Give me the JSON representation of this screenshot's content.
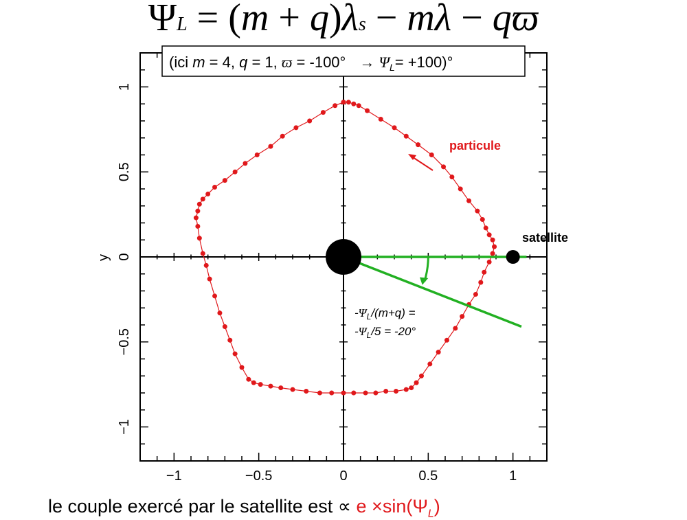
{
  "equation": {
    "lhs_symbol": "Ψ",
    "lhs_sub": "L",
    "eq_prefix": " = (",
    "m1": "m",
    "plus": " + ",
    "q1": "q",
    "close_paren": ")",
    "lambda1": "λ",
    "lambda1_sub": "s",
    "minus1": " − ",
    "m2": "m",
    "lambda2": "λ",
    "minus2": " − ",
    "q2": "q",
    "varpi": "ϖ"
  },
  "note_box": {
    "text_pre": "(ici ",
    "m": "m",
    "m_val": " = 4, ",
    "q": "q",
    "q_val": " = 1, ",
    "varpi": "ϖ",
    "varpi_val": " = -100°",
    "arrow": "→ ",
    "psi": "Ψ",
    "psi_sub": "L",
    "psi_val": "= +100)°"
  },
  "labels": {
    "particle": "particule",
    "satellite": "satellite",
    "angle_line1_pre": "-",
    "angle_line1_psi": "Ψ",
    "angle_line1_sub": "L",
    "angle_line1_post": "/(m+q) =",
    "angle_line2_pre": "-",
    "angle_line2_psi": "Ψ",
    "angle_line2_sub": "L",
    "angle_line2_post": "/5 = -20°"
  },
  "caption": {
    "text": "le couple exercé par le satellite est ∝ ",
    "red_text": "e ×sin(Ψ",
    "red_sub": "L",
    "red_close": ")"
  },
  "colors": {
    "orbit": "#e0181b",
    "angle": "#22b022",
    "axes": "#000000"
  },
  "chart_data": {
    "type": "scatter",
    "xlabel": "",
    "ylabel": "y",
    "xlim": [
      -1.2,
      1.2
    ],
    "ylim": [
      -1.2,
      1.2
    ],
    "xticks": [
      -1,
      -0.5,
      0,
      0.5,
      1
    ],
    "xtick_labels": [
      "−1",
      "−0.5",
      "0",
      "0.5",
      "1"
    ],
    "yticks": [
      -1,
      -0.5,
      0,
      0.5,
      1
    ],
    "ytick_labels": [
      "−1",
      "−0.5",
      "0",
      "0.5",
      "1"
    ],
    "central_body": {
      "x": 0,
      "y": 0
    },
    "satellite": {
      "x": 1.0,
      "y": 0
    },
    "angle_line": {
      "from": [
        0,
        0
      ],
      "to": [
        1.05,
        -0.41
      ]
    },
    "reference_line": {
      "from": [
        0,
        0
      ],
      "to": [
        1.08,
        0
      ]
    },
    "series": [
      {
        "name": "particule",
        "points": [
          [
            0.0,
            0.91
          ],
          [
            0.03,
            0.91
          ],
          [
            0.06,
            0.9
          ],
          [
            0.09,
            0.89
          ],
          [
            0.14,
            0.86
          ],
          [
            0.22,
            0.81
          ],
          [
            0.3,
            0.76
          ],
          [
            0.37,
            0.71
          ],
          [
            0.44,
            0.66
          ],
          [
            0.52,
            0.6
          ],
          [
            0.59,
            0.53
          ],
          [
            0.64,
            0.47
          ],
          [
            0.69,
            0.4
          ],
          [
            0.74,
            0.33
          ],
          [
            0.79,
            0.27
          ],
          [
            0.82,
            0.22
          ],
          [
            0.84,
            0.17
          ],
          [
            0.86,
            0.13
          ],
          [
            0.88,
            0.1
          ],
          [
            0.89,
            0.06
          ],
          [
            0.88,
            0.02
          ],
          [
            0.86,
            -0.03
          ],
          [
            0.83,
            -0.09
          ],
          [
            0.81,
            -0.15
          ],
          [
            0.78,
            -0.22
          ],
          [
            0.74,
            -0.28
          ],
          [
            0.7,
            -0.35
          ],
          [
            0.66,
            -0.42
          ],
          [
            0.61,
            -0.49
          ],
          [
            0.56,
            -0.56
          ],
          [
            0.51,
            -0.63
          ],
          [
            0.46,
            -0.7
          ],
          [
            0.43,
            -0.74
          ],
          [
            0.4,
            -0.77
          ],
          [
            0.37,
            -0.78
          ],
          [
            0.31,
            -0.79
          ],
          [
            0.25,
            -0.79
          ],
          [
            0.19,
            -0.8
          ],
          [
            0.13,
            -0.8
          ],
          [
            0.06,
            -0.8
          ],
          [
            0.0,
            -0.8
          ],
          [
            -0.07,
            -0.8
          ],
          [
            -0.14,
            -0.8
          ],
          [
            -0.22,
            -0.79
          ],
          [
            -0.3,
            -0.78
          ],
          [
            -0.37,
            -0.77
          ],
          [
            -0.43,
            -0.76
          ],
          [
            -0.49,
            -0.75
          ],
          [
            -0.53,
            -0.74
          ],
          [
            -0.56,
            -0.72
          ],
          [
            -0.6,
            -0.65
          ],
          [
            -0.64,
            -0.57
          ],
          [
            -0.67,
            -0.49
          ],
          [
            -0.7,
            -0.41
          ],
          [
            -0.73,
            -0.33
          ],
          [
            -0.76,
            -0.23
          ],
          [
            -0.79,
            -0.13
          ],
          [
            -0.81,
            -0.05
          ],
          [
            -0.83,
            0.02
          ],
          [
            -0.85,
            0.11
          ],
          [
            -0.86,
            0.18
          ],
          [
            -0.87,
            0.23
          ],
          [
            -0.86,
            0.27
          ],
          [
            -0.85,
            0.31
          ],
          [
            -0.83,
            0.34
          ],
          [
            -0.8,
            0.37
          ],
          [
            -0.76,
            0.41
          ],
          [
            -0.7,
            0.45
          ],
          [
            -0.64,
            0.5
          ],
          [
            -0.58,
            0.55
          ],
          [
            -0.51,
            0.6
          ],
          [
            -0.43,
            0.65
          ],
          [
            -0.36,
            0.71
          ],
          [
            -0.28,
            0.76
          ],
          [
            -0.2,
            0.8
          ],
          [
            -0.12,
            0.85
          ],
          [
            -0.05,
            0.89
          ],
          [
            0.0,
            0.91
          ]
        ]
      }
    ]
  }
}
